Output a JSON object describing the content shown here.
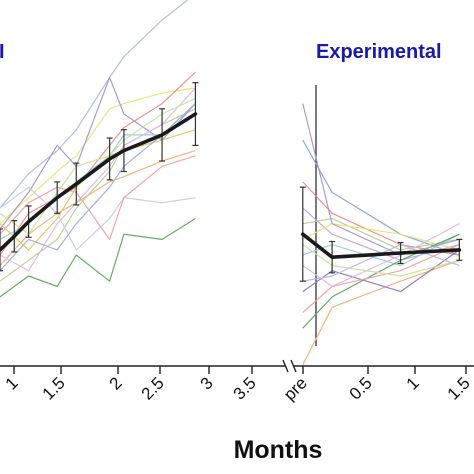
{
  "chart_data": [
    {
      "type": "line",
      "panel": "left",
      "title": "I",
      "title_color": "#1a1aaa",
      "xlabel": "Months",
      "x_tick_labels": [
        "1",
        "1.5",
        "2",
        "2.5",
        "3",
        "3.5"
      ],
      "xlim": [
        0.7,
        3.7
      ],
      "ylim": [
        -1.6,
        1.75
      ],
      "grid": false,
      "mean": {
        "x": [
          0.7,
          0.85,
          1.0,
          1.3,
          1.5,
          1.85,
          2.0,
          2.4,
          2.75
        ],
        "y": [
          -0.45,
          -0.32,
          -0.18,
          0.05,
          0.18,
          0.42,
          0.5,
          0.65,
          0.85
        ],
        "err": [
          0.2,
          0.15,
          0.15,
          0.15,
          0.2,
          0.2,
          0.2,
          0.25,
          0.3
        ],
        "color": "#1a1a1a"
      },
      "series": [
        {
          "color": "#b2b8ea",
          "x": [
            0.7,
            1.0,
            1.3,
            1.5,
            1.85,
            2.0,
            2.4,
            2.75
          ],
          "y": [
            -0.05,
            0.28,
            0.5,
            0.7,
            1.2,
            1.4,
            1.75,
            2.0
          ]
        },
        {
          "color": "#f0e070",
          "x": [
            0.7,
            1.0,
            1.3,
            1.5,
            1.85,
            2.0,
            2.4,
            2.75
          ],
          "y": [
            -0.2,
            0.05,
            0.3,
            0.45,
            0.9,
            0.95,
            1.05,
            1.1
          ]
        },
        {
          "color": "#f08a8a",
          "x": [
            0.7,
            1.0,
            1.3,
            1.5,
            1.85,
            2.0,
            2.4,
            2.75
          ],
          "y": [
            -0.5,
            -0.1,
            0.05,
            0.15,
            0.55,
            0.72,
            0.95,
            1.25
          ]
        },
        {
          "color": "#b4d28a",
          "x": [
            0.7,
            1.0,
            1.3,
            1.5,
            1.85,
            2.0,
            2.4,
            2.75
          ],
          "y": [
            -0.75,
            -0.55,
            -0.35,
            -0.05,
            0.3,
            0.55,
            0.75,
            0.9
          ]
        },
        {
          "color": "#a896c8",
          "x": [
            0.7,
            1.0,
            1.3,
            1.5,
            1.85,
            2.0,
            2.4,
            2.75
          ],
          "y": [
            -0.25,
            0.1,
            0.55,
            0.35,
            1.2,
            0.85,
            0.6,
            0.95
          ]
        },
        {
          "color": "#8ed0e0",
          "x": [
            0.7,
            1.0,
            1.3,
            1.5,
            1.85,
            2.0,
            2.4,
            2.75
          ],
          "y": [
            -0.35,
            -0.2,
            0.05,
            0.2,
            0.45,
            0.65,
            0.65,
            0.95
          ]
        },
        {
          "color": "#f5b070",
          "x": [
            0.7,
            1.0,
            1.3,
            1.5,
            1.85,
            2.0,
            2.4,
            2.75
          ],
          "y": [
            -0.6,
            -0.3,
            -0.1,
            0.0,
            0.2,
            0.25,
            0.4,
            0.5
          ]
        },
        {
          "color": "#58aa58",
          "x": [
            0.7,
            1.0,
            1.3,
            1.5,
            1.85,
            2.0,
            2.4,
            2.75
          ],
          "y": [
            -0.9,
            -0.7,
            -0.8,
            -0.5,
            -0.75,
            -0.3,
            -0.35,
            -0.15
          ]
        },
        {
          "color": "#c8c8f0",
          "x": [
            0.7,
            1.0,
            1.3,
            1.5,
            1.85,
            2.0,
            2.4,
            2.75
          ],
          "y": [
            -0.05,
            0.15,
            -0.1,
            -0.45,
            -0.15,
            0.05,
            0.0,
            0.05
          ]
        },
        {
          "color": "#e2b6e8",
          "x": [
            0.7,
            1.0,
            1.3,
            1.5,
            1.85,
            2.0,
            2.4,
            2.75
          ],
          "y": [
            -0.5,
            -0.65,
            -0.2,
            0.0,
            0.35,
            0.55,
            0.75,
            1.1
          ]
        },
        {
          "color": "#e2c860",
          "x": [
            0.7,
            1.0,
            1.3,
            1.5,
            1.85,
            2.0,
            2.4,
            2.75
          ],
          "y": [
            -0.2,
            -0.45,
            -0.15,
            0.15,
            0.45,
            0.5,
            0.6,
            0.7
          ]
        },
        {
          "color": "#9aaee0",
          "x": [
            0.7,
            1.0,
            1.3,
            1.5,
            1.85,
            2.0,
            2.4,
            2.75
          ],
          "y": [
            -0.65,
            -0.35,
            -0.45,
            -0.2,
            0.15,
            0.35,
            0.65,
            0.95
          ]
        },
        {
          "color": "#f3a0a0",
          "x": [
            0.7,
            1.0,
            1.3,
            1.5,
            1.85,
            2.0,
            2.4,
            2.75
          ],
          "y": [
            -0.3,
            0.0,
            0.15,
            0.1,
            -0.35,
            0.05,
            0.35,
            0.45
          ]
        },
        {
          "color": "#c8e0a0",
          "x": [
            0.7,
            1.0,
            1.3,
            1.5,
            1.85,
            2.0,
            2.4,
            2.75
          ],
          "y": [
            -0.1,
            -0.3,
            0.1,
            0.35,
            0.45,
            0.6,
            0.85,
            1.0
          ]
        }
      ]
    },
    {
      "type": "line",
      "panel": "right",
      "title": "Experimental",
      "title_color": "#1a1aaa",
      "xlabel": "Months",
      "x_tick_labels": [
        "pre",
        "0.5",
        "1",
        "1.5"
      ],
      "xlim": [
        -0.25,
        1.6
      ],
      "ylim": [
        -1.6,
        1.75
      ],
      "grid": false,
      "mean": {
        "x": [
          -0.15,
          0.15,
          0.85,
          1.45
        ],
        "y": [
          -0.3,
          -0.52,
          -0.48,
          -0.45
        ],
        "err": [
          0.45,
          0.15,
          0.1,
          0.1
        ],
        "color": "#1a1a1a"
      },
      "series": [
        {
          "color": "#7ea8dc",
          "x": [
            -0.15,
            0.15,
            0.85,
            1.45
          ],
          "y": [
            0.6,
            0.1,
            -0.3,
            -0.5
          ]
        },
        {
          "color": "#f08a8a",
          "x": [
            -0.15,
            0.15,
            0.85,
            1.45
          ],
          "y": [
            0.2,
            -0.1,
            -0.4,
            -0.5
          ]
        },
        {
          "color": "#c8a0d8",
          "x": [
            -0.15,
            0.15,
            0.85,
            1.45
          ],
          "y": [
            -0.05,
            -0.3,
            -0.55,
            -0.4
          ]
        },
        {
          "color": "#b4d28a",
          "x": [
            -0.15,
            0.15,
            0.85,
            1.45
          ],
          "y": [
            -0.2,
            -0.15,
            -0.45,
            -0.35
          ]
        },
        {
          "color": "#f0e070",
          "x": [
            -0.15,
            0.15,
            0.85,
            1.45
          ],
          "y": [
            -0.35,
            -0.2,
            -0.3,
            -0.45
          ]
        },
        {
          "color": "#8ed0e0",
          "x": [
            -0.15,
            0.15,
            0.85,
            1.45
          ],
          "y": [
            -0.5,
            -0.4,
            -0.6,
            -0.3
          ]
        },
        {
          "color": "#f5b070",
          "x": [
            -0.15,
            0.15,
            0.85,
            1.45
          ],
          "y": [
            -1.55,
            -1.0,
            -0.75,
            -0.55
          ]
        },
        {
          "color": "#58aa58",
          "x": [
            -0.15,
            0.15,
            0.85,
            1.45
          ],
          "y": [
            -1.2,
            -0.9,
            -0.55,
            -0.3
          ]
        },
        {
          "color": "#8a78c8",
          "x": [
            -0.15,
            0.15,
            0.85,
            1.45
          ],
          "y": [
            -0.85,
            -0.65,
            -0.85,
            -0.45
          ]
        },
        {
          "color": "#e2b6e8",
          "x": [
            -0.15,
            0.15,
            0.85,
            1.45
          ],
          "y": [
            -0.6,
            -0.8,
            -0.5,
            -0.2
          ]
        },
        {
          "color": "#b2b8ea",
          "x": [
            -0.15,
            0.15,
            0.85,
            1.45
          ],
          "y": [
            -0.75,
            -0.7,
            -0.4,
            -0.6
          ]
        },
        {
          "color": "#f3a0a0",
          "x": [
            -0.15,
            0.15,
            0.85,
            1.45
          ],
          "y": [
            -1.05,
            -0.8,
            -0.65,
            -0.4
          ]
        },
        {
          "color": "#c8e0a0",
          "x": [
            -0.15,
            0.15,
            0.85,
            1.45
          ],
          "y": [
            -0.4,
            -0.6,
            -0.7,
            -0.55
          ]
        },
        {
          "color": "#a896c8",
          "x": [
            -0.15,
            0.15,
            0.85,
            1.45
          ],
          "y": [
            0.95,
            -0.2,
            -0.5,
            -0.35
          ]
        }
      ]
    }
  ]
}
